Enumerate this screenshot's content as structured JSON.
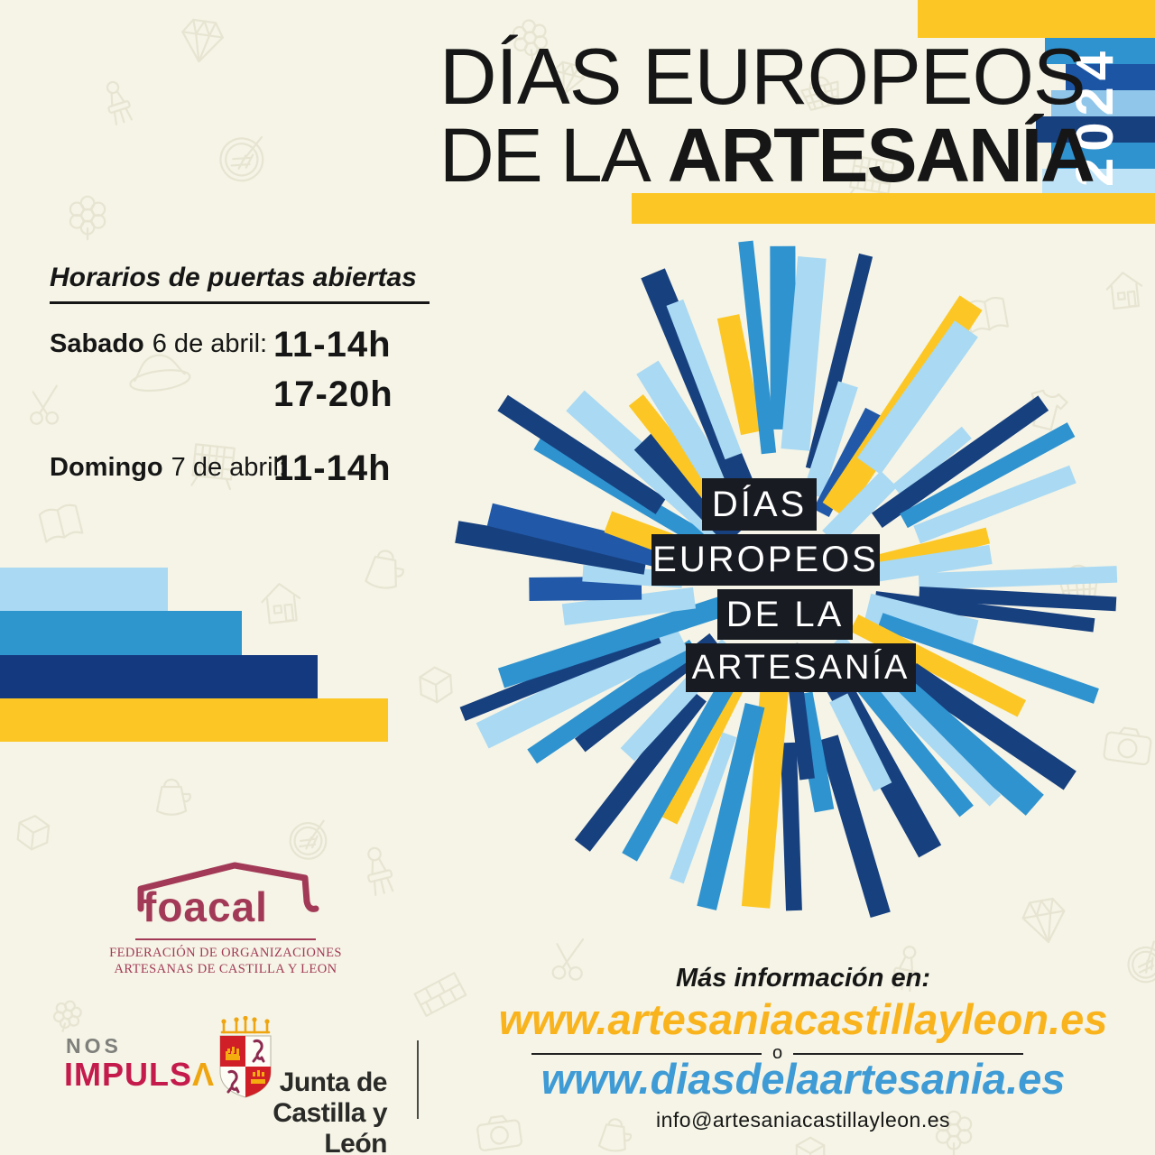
{
  "title": {
    "line1": "DÍAS EUROPEOS",
    "line2_prefix": "DE LA",
    "line2_bold": "ARTESANÍA",
    "year": "2024"
  },
  "schedule": {
    "heading": "Horarios de puertas abiertas",
    "items": [
      {
        "day": "Sabado",
        "date": "6 de abril:",
        "times": [
          "11-14h",
          "17-20h"
        ]
      },
      {
        "day": "Domingo",
        "date": "7 de abril:",
        "times": [
          "11-14h"
        ]
      }
    ]
  },
  "burst": {
    "lines": [
      "DÍAS",
      "EUROPEOS",
      "DE LA",
      "ARTESANÍA"
    ]
  },
  "foacal": {
    "logo_text": "foacal",
    "caption_line1": "FEDERACIÓN DE ORGANIZACIONES",
    "caption_line2": "ARTESANAS DE CASTILLA Y LEON"
  },
  "sponsors": {
    "nos": "NOS",
    "impulsa_prefix": "IMPULS",
    "impulsa_a": "Λ",
    "junta_line1": "Junta de",
    "junta_line2": "Castilla y León"
  },
  "info": {
    "heading": "Más información en:",
    "url_primary": "www.artesaniacastillayleon.es",
    "separator": "o",
    "url_secondary": "www.diasdelaartesania.es",
    "email": "info@artesaniacastillayleon.es"
  },
  "colors": {
    "background": "#f5f4e6",
    "ink": "#161616",
    "navy": "#17407f",
    "royal": "#2159a8",
    "blue": "#2f93d0",
    "lightblue": "#a9d9f3",
    "sky": "#8fc6e9",
    "palest": "#bee3f6",
    "yellow": "#fcc725",
    "url_yellow": "#f9b31c",
    "url_blue": "#3e9bd5",
    "maroon": "#a23a57",
    "crimson": "#c41a4c",
    "orange": "#efa50f",
    "label_box": "#181b21",
    "icon_stroke": "#dcd8c2"
  }
}
